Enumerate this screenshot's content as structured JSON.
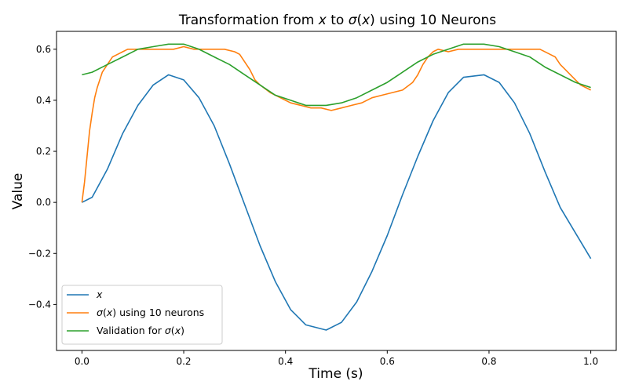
{
  "chart_data": {
    "type": "line",
    "title": "Transformation from x to σ(x) using 10 Neurons",
    "xlabel": "Time (s)",
    "ylabel": "Value",
    "xlim": [
      -0.05,
      1.05
    ],
    "ylim": [
      -0.58,
      0.67
    ],
    "x_ticks": [
      0.0,
      0.2,
      0.4,
      0.6,
      0.8,
      1.0
    ],
    "x_tick_labels": [
      "0.0",
      "0.2",
      "0.4",
      "0.6",
      "0.8",
      "1.0"
    ],
    "y_ticks": [
      -0.4,
      -0.2,
      0.0,
      0.2,
      0.4,
      0.6
    ],
    "y_tick_labels": [
      "−0.4",
      "−0.2",
      "0.0",
      "0.2",
      "0.4",
      "0.6"
    ],
    "grid": false,
    "legend_position": "lower-left",
    "series": [
      {
        "name": "x",
        "color": "#1f77b4",
        "x": [
          0.0,
          0.02,
          0.05,
          0.08,
          0.11,
          0.14,
          0.17,
          0.2,
          0.23,
          0.26,
          0.29,
          0.32,
          0.35,
          0.38,
          0.41,
          0.44,
          0.48,
          0.51,
          0.54,
          0.57,
          0.6,
          0.63,
          0.66,
          0.69,
          0.72,
          0.75,
          0.79,
          0.82,
          0.85,
          0.88,
          0.91,
          0.94,
          0.97,
          1.0
        ],
        "y": [
          0.0,
          0.02,
          0.13,
          0.27,
          0.38,
          0.46,
          0.5,
          0.48,
          0.41,
          0.3,
          0.15,
          -0.01,
          -0.17,
          -0.31,
          -0.42,
          -0.48,
          -0.5,
          -0.47,
          -0.39,
          -0.27,
          -0.13,
          0.03,
          0.18,
          0.32,
          0.43,
          0.49,
          0.5,
          0.47,
          0.39,
          0.27,
          0.12,
          -0.02,
          -0.12,
          -0.22
        ]
      },
      {
        "name": "σ(x) using 10 neurons",
        "color": "#ff7f0e",
        "x": [
          0.0,
          0.005,
          0.01,
          0.015,
          0.02,
          0.025,
          0.03,
          0.035,
          0.04,
          0.05,
          0.06,
          0.07,
          0.08,
          0.09,
          0.1,
          0.12,
          0.14,
          0.16,
          0.18,
          0.2,
          0.22,
          0.24,
          0.26,
          0.28,
          0.3,
          0.31,
          0.32,
          0.33,
          0.34,
          0.35,
          0.37,
          0.39,
          0.41,
          0.43,
          0.45,
          0.47,
          0.49,
          0.51,
          0.53,
          0.55,
          0.57,
          0.59,
          0.61,
          0.63,
          0.65,
          0.66,
          0.67,
          0.68,
          0.69,
          0.7,
          0.72,
          0.74,
          0.76,
          0.78,
          0.8,
          0.82,
          0.84,
          0.86,
          0.88,
          0.9,
          0.92,
          0.93,
          0.94,
          0.95,
          0.96,
          0.97,
          0.98,
          0.99,
          1.0
        ],
        "y": [
          0.0,
          0.08,
          0.18,
          0.28,
          0.35,
          0.41,
          0.45,
          0.48,
          0.51,
          0.54,
          0.57,
          0.58,
          0.59,
          0.6,
          0.6,
          0.6,
          0.6,
          0.6,
          0.6,
          0.61,
          0.6,
          0.6,
          0.6,
          0.6,
          0.59,
          0.58,
          0.55,
          0.52,
          0.48,
          0.46,
          0.43,
          0.41,
          0.39,
          0.38,
          0.37,
          0.37,
          0.36,
          0.37,
          0.38,
          0.39,
          0.41,
          0.42,
          0.43,
          0.44,
          0.47,
          0.5,
          0.54,
          0.57,
          0.59,
          0.6,
          0.59,
          0.6,
          0.6,
          0.6,
          0.6,
          0.6,
          0.6,
          0.6,
          0.6,
          0.6,
          0.58,
          0.57,
          0.54,
          0.52,
          0.5,
          0.48,
          0.46,
          0.45,
          0.44
        ]
      },
      {
        "name": "Validation for σ(x)",
        "color": "#2ca02c",
        "x": [
          0.0,
          0.02,
          0.05,
          0.08,
          0.11,
          0.14,
          0.17,
          0.2,
          0.23,
          0.26,
          0.29,
          0.32,
          0.35,
          0.38,
          0.41,
          0.44,
          0.48,
          0.51,
          0.54,
          0.57,
          0.6,
          0.63,
          0.66,
          0.69,
          0.72,
          0.75,
          0.79,
          0.82,
          0.85,
          0.88,
          0.91,
          0.94,
          0.97,
          1.0
        ],
        "y": [
          0.5,
          0.51,
          0.54,
          0.57,
          0.6,
          0.61,
          0.62,
          0.62,
          0.6,
          0.57,
          0.54,
          0.5,
          0.46,
          0.42,
          0.4,
          0.38,
          0.38,
          0.39,
          0.41,
          0.44,
          0.47,
          0.51,
          0.55,
          0.58,
          0.6,
          0.62,
          0.62,
          0.61,
          0.59,
          0.57,
          0.53,
          0.5,
          0.47,
          0.45
        ]
      }
    ]
  }
}
